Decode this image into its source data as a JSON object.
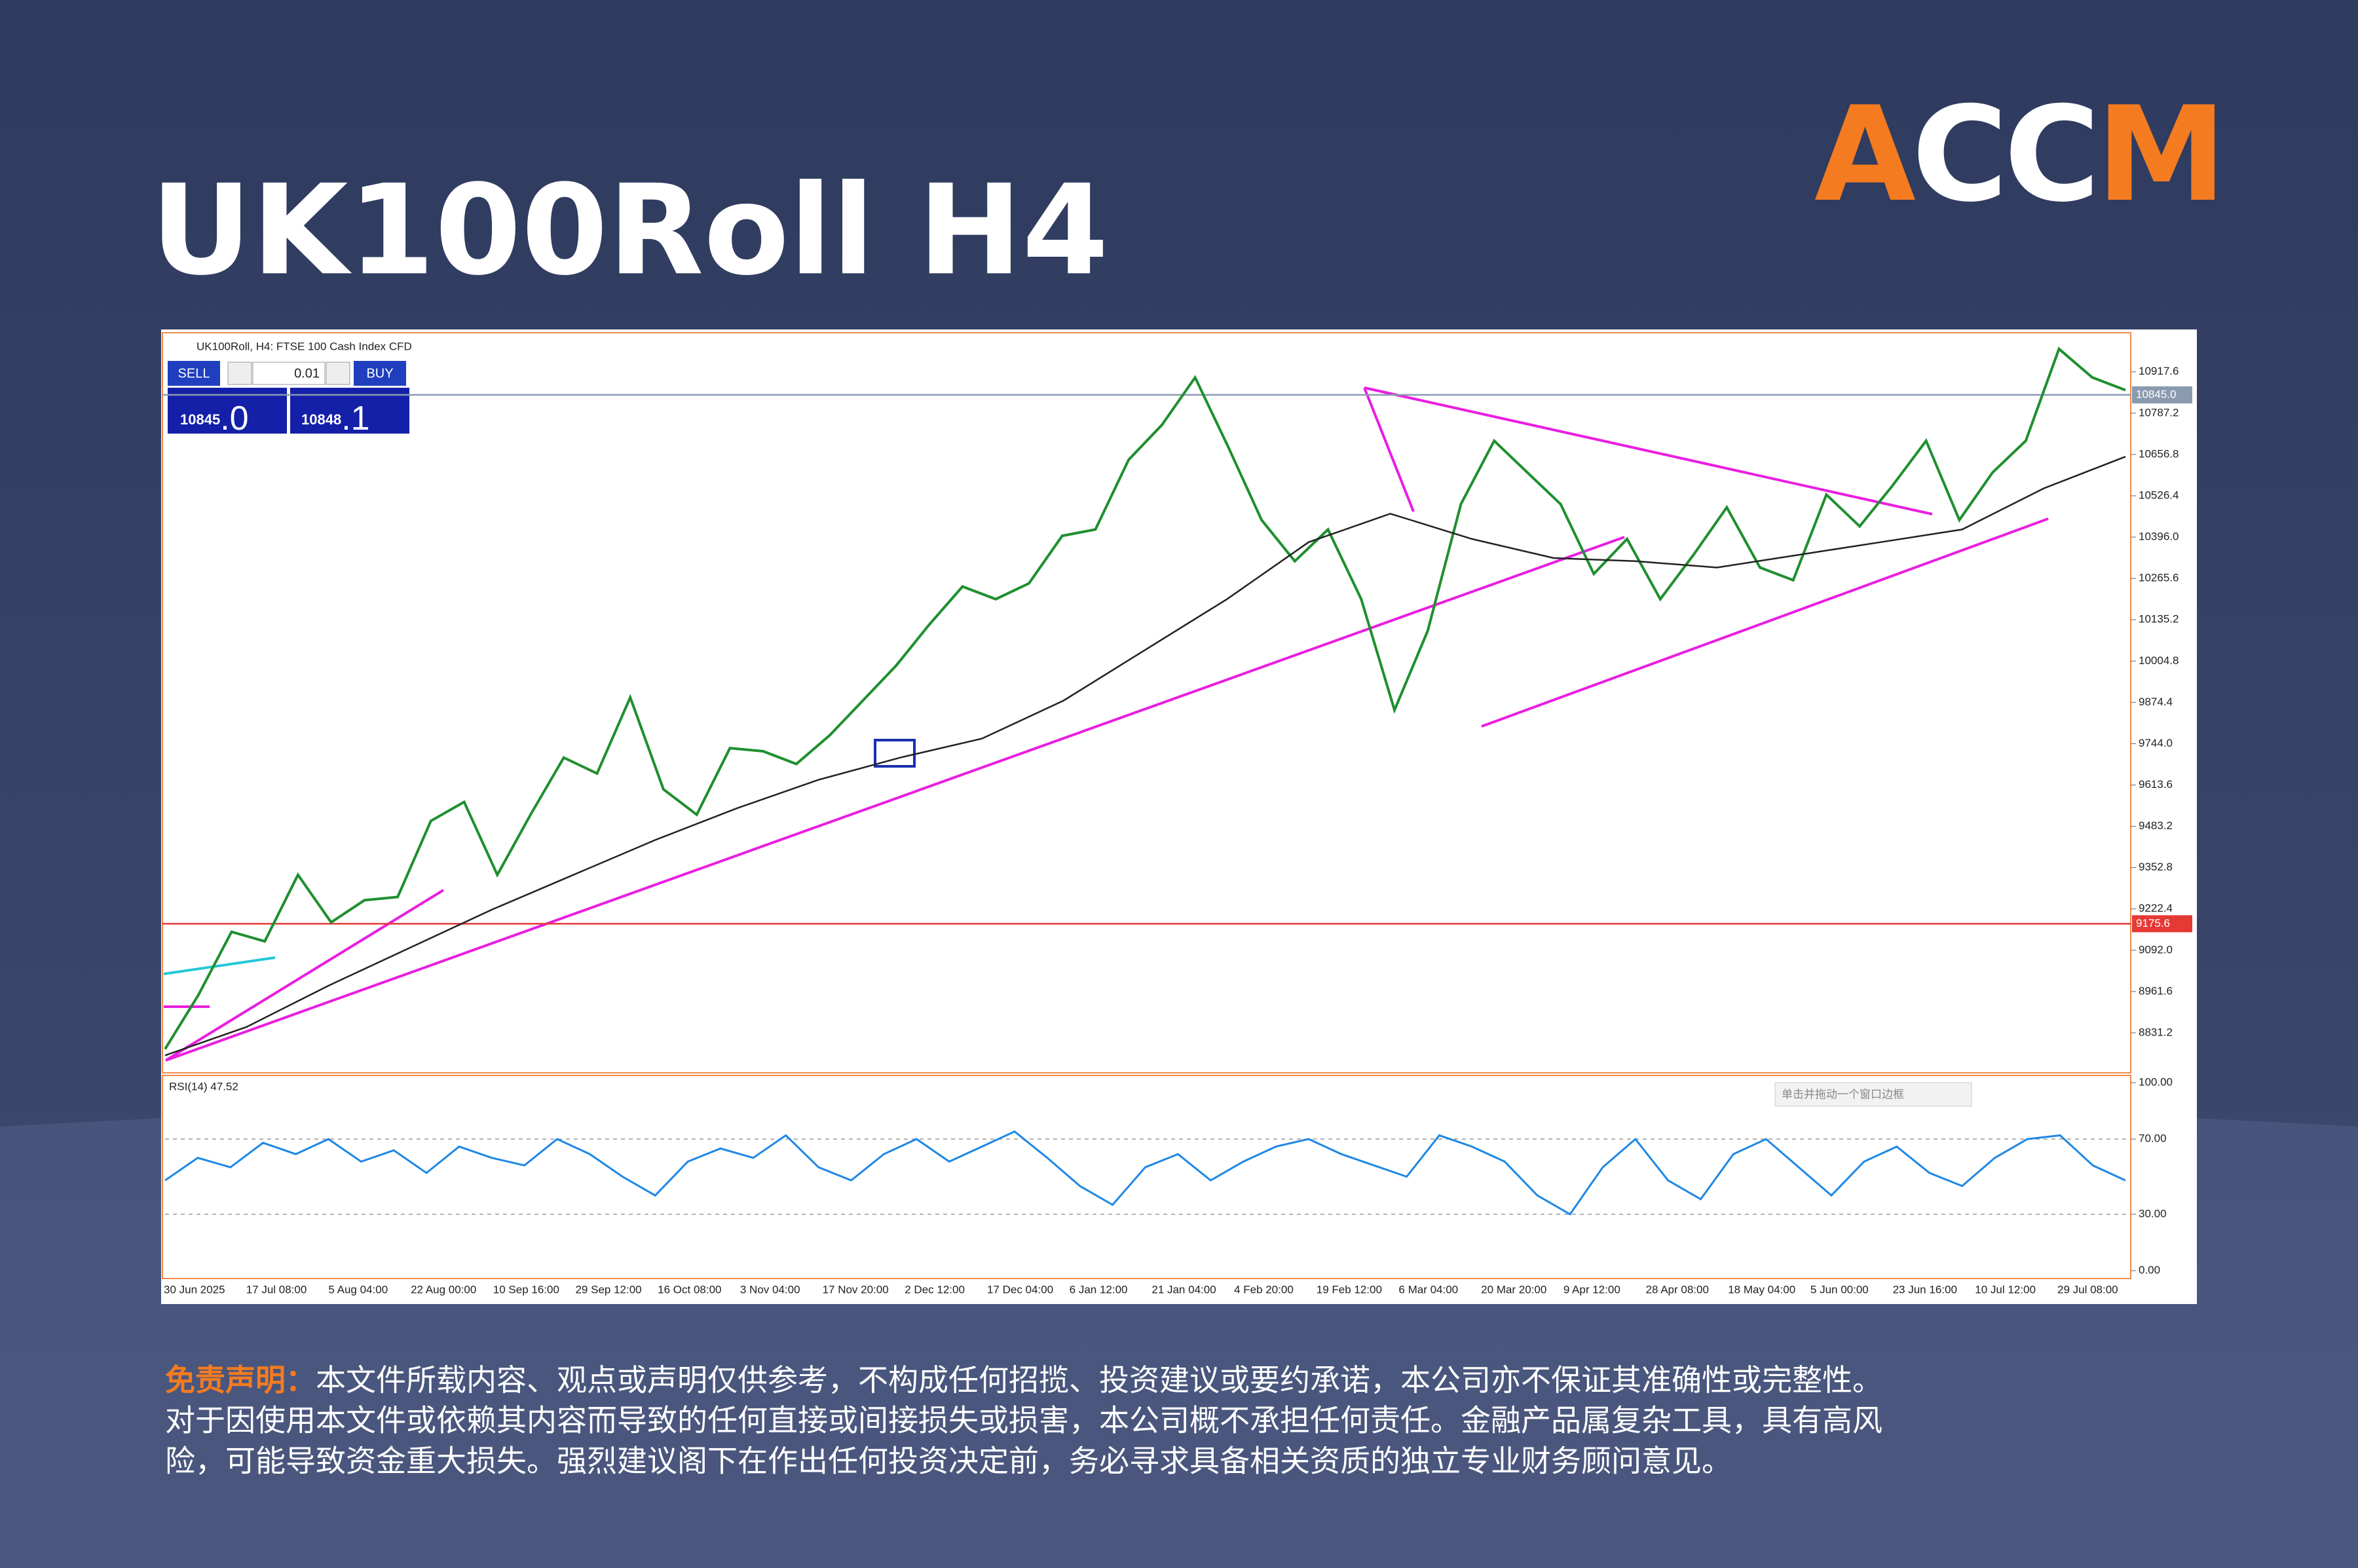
{
  "header": {
    "title": "UK100Roll H4",
    "logo": [
      "A",
      "CC",
      "M"
    ]
  },
  "chart_data": {
    "type": "line",
    "symbol_label": "UK100Roll, H4: FTSE 100 Cash Index CFD",
    "trade_panel": {
      "sell": "SELL",
      "buy": "BUY",
      "lot": "0.01",
      "sell_price": "10845",
      "sell_frac": ".0",
      "buy_price": "10848",
      "buy_frac": ".1"
    },
    "ylim": [
      8707,
      11037
    ],
    "yticks": [
      8831.2,
      8961.6,
      {
        "value": 9092.0,
        "label": "9092.0"
      },
      9222.4,
      9352.8,
      9483.2,
      9613.6,
      {
        "value": 9744.0,
        "label": "9744.0"
      },
      9874.4,
      10004.8,
      10135.2,
      10265.6,
      {
        "value": 10396.0,
        "label": "10396.0"
      },
      10526.4,
      10656.8,
      10787.2,
      10917.6
    ],
    "price_lines": [
      {
        "value": 10845.0,
        "label": "10845.0",
        "color": "#8a9bb0"
      },
      {
        "value": 9175.6,
        "label": "9175.6",
        "color": "#e53935"
      }
    ],
    "series": [
      {
        "color": "#1f8f2f",
        "values": [
          8780,
          8950,
          9150,
          9120,
          9330,
          9180,
          9250,
          9260,
          9500,
          9560,
          9330,
          9520,
          9700,
          9650,
          9890,
          9600,
          9520,
          9730,
          9720,
          9680,
          9770,
          9880,
          9990,
          10120,
          10240,
          10200,
          10250,
          10400,
          10420,
          10640,
          10750,
          10900,
          10680,
          10450,
          10320,
          10420,
          10200,
          9850,
          10100,
          10500,
          10700,
          10600,
          10500,
          10280,
          10390,
          10200,
          10340,
          10490,
          10300,
          10260,
          10530,
          10430,
          10560,
          10700,
          10450,
          10600,
          10700,
          10990,
          10900,
          10860
        ]
      },
      {
        "color": "#222222",
        "values": [
          8760,
          8850,
          8980,
          9100,
          9220,
          9330,
          9440,
          9540,
          9630,
          9700,
          9760,
          9880,
          10040,
          10200,
          10380,
          10470,
          10390,
          10330,
          10320,
          10300,
          10340,
          10380,
          10420,
          10550,
          10650
        ]
      }
    ],
    "rsi": {
      "label": "RSI(14) 47.52",
      "color": "#1e88e5",
      "ylim": [
        0,
        100
      ],
      "yticks": [
        {
          "value": 100,
          "label": "100.00"
        },
        {
          "value": 70,
          "label": "70.00"
        },
        {
          "value": 30,
          "label": "30.00"
        },
        {
          "value": 0,
          "label": "0.00"
        }
      ],
      "levels": [
        70,
        30
      ],
      "values": [
        48,
        60,
        55,
        68,
        62,
        70,
        58,
        64,
        52,
        66,
        60,
        56,
        70,
        62,
        50,
        40,
        58,
        65,
        60,
        72,
        55,
        48,
        62,
        70,
        58,
        66,
        74,
        60,
        45,
        35,
        55,
        62,
        48,
        58,
        66,
        70,
        62,
        56,
        50,
        72,
        66,
        58,
        40,
        30,
        55,
        70,
        48,
        38,
        62,
        70,
        55,
        40,
        58,
        66,
        52,
        45,
        60,
        70,
        72,
        56,
        48
      ]
    },
    "tooltip": "单击并拖动一个窗口边框",
    "xtick_labels": [
      "30 Jun 2025",
      "17 Jul 08:00",
      "5 Aug 04:00",
      "22 Aug 00:00",
      "10 Sep 16:00",
      "29 Sep 12:00",
      "16 Oct 08:00",
      "3 Nov 04:00",
      "17 Nov 20:00",
      "2 Dec 12:00",
      "17 Dec 04:00",
      "6 Jan 12:00",
      "21 Jan 04:00",
      "4 Feb 20:00",
      "19 Feb 12:00",
      "6 Mar 04:00",
      "20 Mar 20:00",
      "9 Apr 12:00",
      "28 Apr 08:00",
      "18 May 04:00",
      "5 Jun 00:00",
      "23 Jun 16:00",
      "10 Jul 12:00",
      "29 Jul 08:00"
    ]
  },
  "disclaimer": {
    "label": "免责声明：",
    "lines": [
      "本文件所载内容、观点或声明仅供参考，不构成任何招揽、投资建议或要约承诺，本公司亦不保证其准确性或完整性。",
      "对于因使用本文件或依赖其内容而导致的任何直接或间接损失或损害，本公司概不承担任何责任。金融产品属复杂工具，具有高风",
      "险，可能导致资金重大损失。强烈建议阁下在作出任何投资决定前，务必寻求具备相关资质的独立专业财务顾问意见。"
    ]
  }
}
